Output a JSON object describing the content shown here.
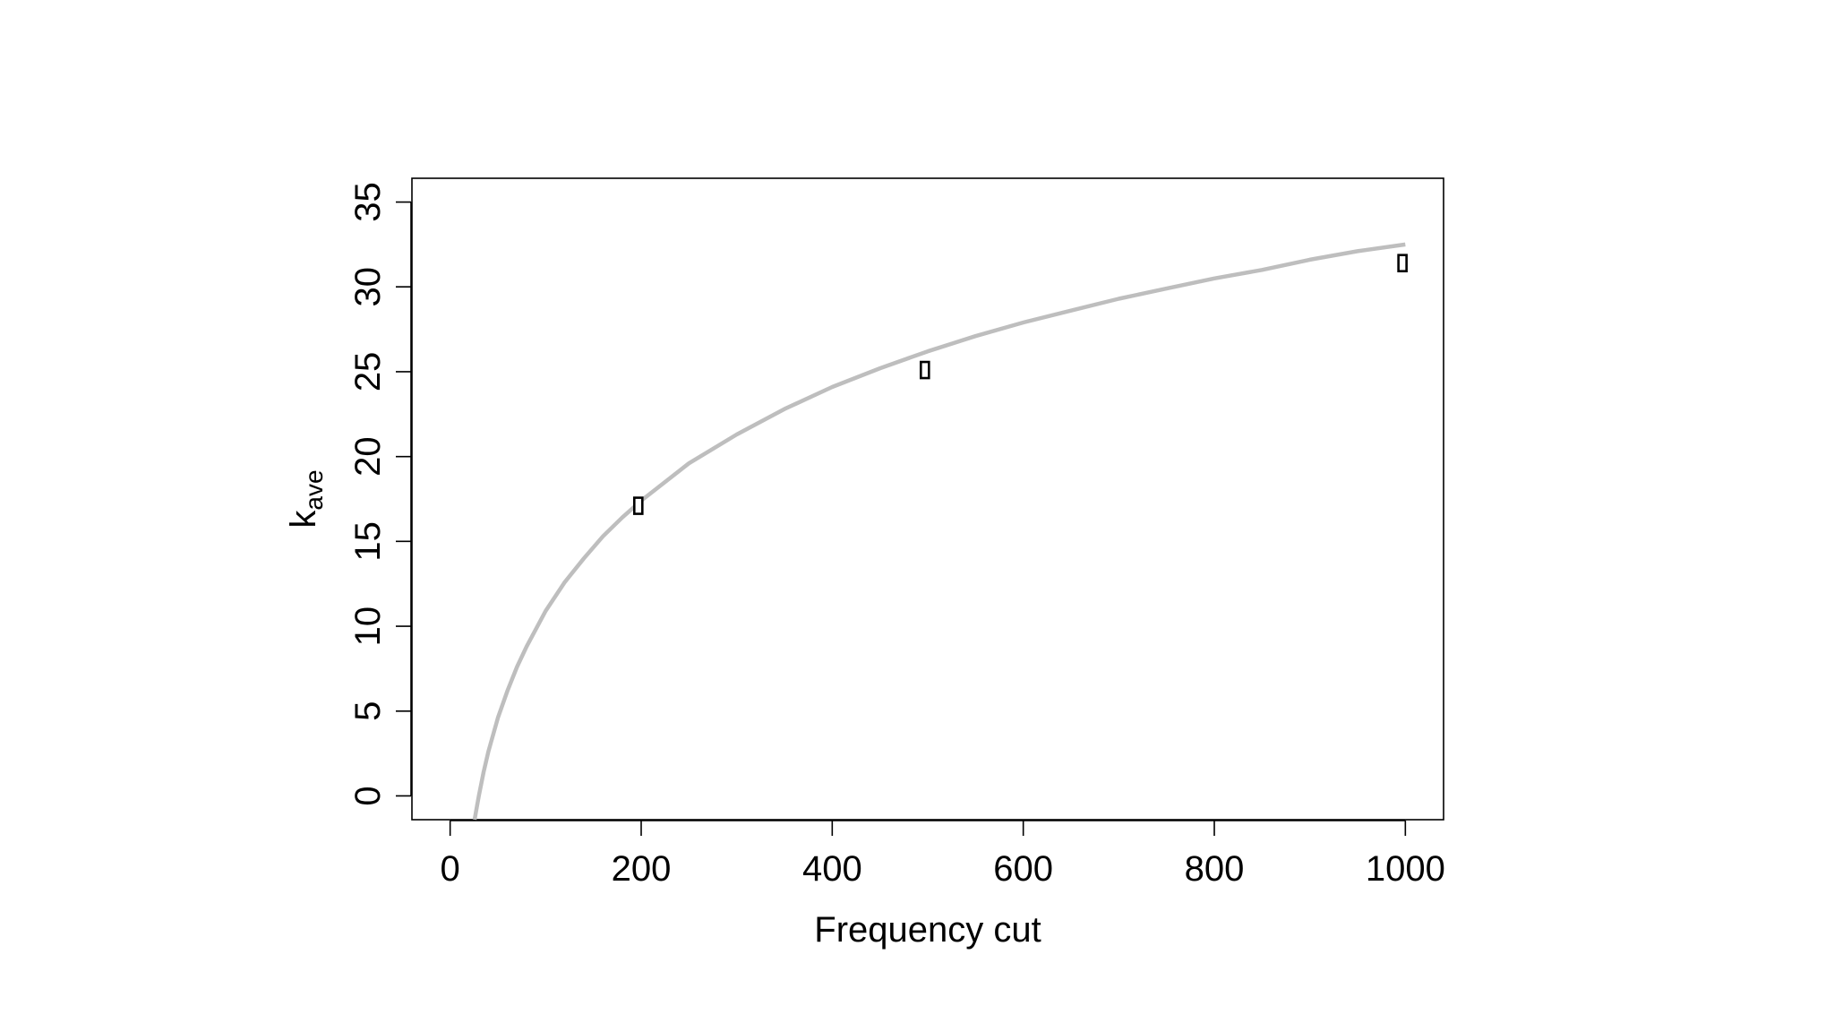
{
  "chart_data": {
    "type": "line",
    "xlabel": "Frequency cut",
    "ylabel_main": "k",
    "ylabel_sub": "ave",
    "xlim": [
      -40,
      1040
    ],
    "ylim": [
      -1.4,
      36.4
    ],
    "xticks": [
      0,
      200,
      400,
      600,
      800,
      1000
    ],
    "yticks": [
      0,
      5,
      10,
      15,
      20,
      25,
      30,
      35
    ],
    "grid": false,
    "series": [
      {
        "kind": "curve",
        "color": "#bebebe",
        "x": [
          25.6,
          27,
          30,
          35,
          40,
          50,
          60,
          70,
          80,
          100,
          120,
          140,
          160,
          180,
          200,
          250,
          300,
          350,
          400,
          450,
          500,
          550,
          600,
          650,
          700,
          750,
          800,
          850,
          900,
          950,
          1000
        ],
        "y": [
          -1.4,
          -0.94,
          0.0,
          1.4,
          2.6,
          4.6,
          6.2,
          7.6,
          8.8,
          10.9,
          12.6,
          14.0,
          15.3,
          16.4,
          17.4,
          19.6,
          21.3,
          22.8,
          24.1,
          25.2,
          26.2,
          27.1,
          27.9,
          28.6,
          29.3,
          29.9,
          30.5,
          31.0,
          31.6,
          32.1,
          32.5
        ]
      },
      {
        "kind": "markers",
        "marker": "rect",
        "x": [
          197,
          497,
          997
        ],
        "y": [
          17.1,
          25.1,
          31.4
        ]
      }
    ]
  }
}
